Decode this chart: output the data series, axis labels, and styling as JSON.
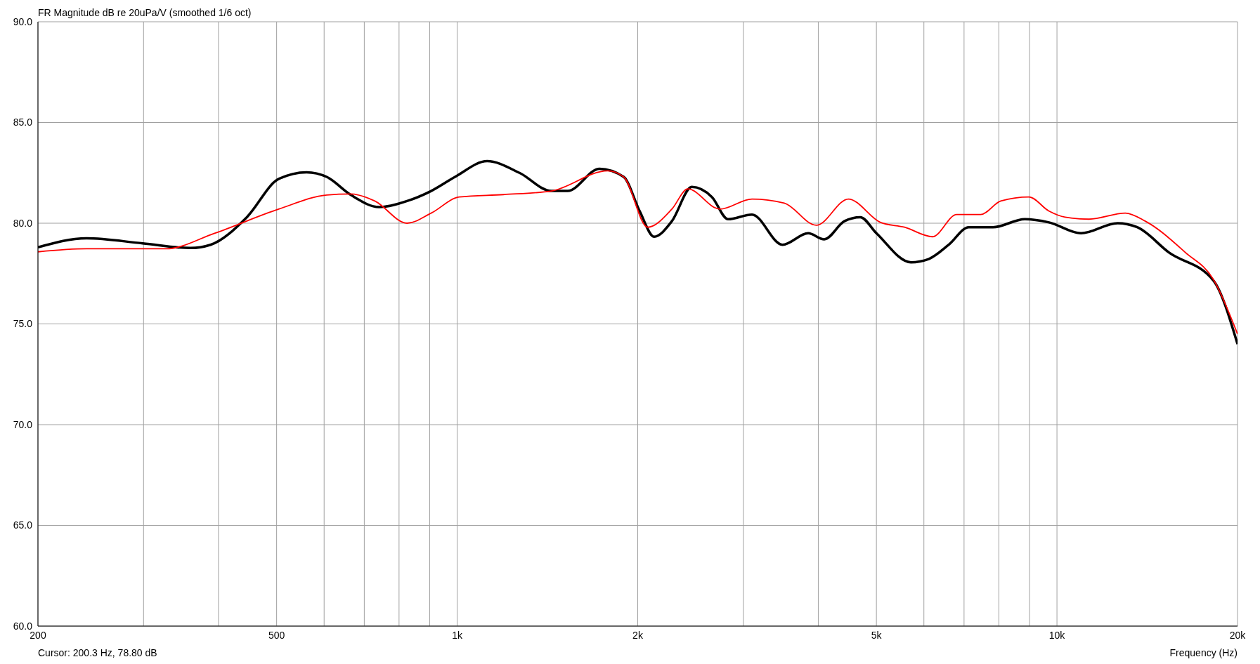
{
  "chart_data": {
    "type": "line",
    "title": "FR Magnitude dB re 20uPa/V (smoothed 1/6 oct)",
    "xlabel": "Frequency (Hz)",
    "annotations": [
      "Cursor: 200.3 Hz, 78.80 dB"
    ],
    "log": "x",
    "grid": true,
    "marker": "none",
    "line_style": "solid",
    "xlim": [
      200,
      20000
    ],
    "xticks": [
      200,
      {
        "value": 300,
        "label": null
      },
      {
        "value": 400,
        "label": null
      },
      500,
      {
        "value": 600,
        "label": null
      },
      {
        "value": 700,
        "label": null
      },
      {
        "value": 800,
        "label": null
      },
      {
        "value": 900,
        "label": null
      },
      {
        "value": 1000,
        "label": "1k"
      },
      {
        "value": 2000,
        "label": "2k"
      },
      {
        "value": 3000,
        "label": null
      },
      {
        "value": 4000,
        "label": null
      },
      {
        "value": 5000,
        "label": "5k"
      },
      {
        "value": 6000,
        "label": null
      },
      {
        "value": 7000,
        "label": null
      },
      {
        "value": 8000,
        "label": null
      },
      {
        "value": 9000,
        "label": null
      },
      {
        "value": 10000,
        "label": "10k"
      },
      {
        "value": 20000,
        "label": "20k"
      }
    ],
    "ylim": [
      60,
      90
    ],
    "yticks": [
      {
        "value": 60,
        "label": "60.0"
      },
      {
        "value": 65,
        "label": "65.0"
      },
      {
        "value": 70,
        "label": "70.0"
      },
      {
        "value": 75,
        "label": "75.0"
      },
      {
        "value": 80,
        "label": "80.0"
      },
      {
        "value": 85,
        "label": "85.0"
      },
      {
        "value": 90,
        "label": "90.0"
      }
    ],
    "series": [
      {
        "color": "#000000",
        "x": [
          200,
          241,
          299,
          359,
          388,
          446,
          504,
          561,
          606,
          665,
          741,
          825,
          905,
          992,
          1122,
          1270,
          1436,
          1528,
          1727,
          1895,
          2015,
          2130,
          2280,
          2462,
          2659,
          2829,
          3101,
          3487,
          3848,
          4093,
          4421,
          4700,
          5000,
          5710,
          6110,
          6600,
          7130,
          7820,
          8840,
          9700,
          10970,
          12620,
          13610,
          15380,
          18240,
          20000
        ],
        "values": [
          78.8,
          79.25,
          79.0,
          78.77,
          78.93,
          80.3,
          82.2,
          82.53,
          82.3,
          81.4,
          80.8,
          81.1,
          81.6,
          82.3,
          83.08,
          82.5,
          81.6,
          81.6,
          82.7,
          82.3,
          80.6,
          79.33,
          80.1,
          81.8,
          81.3,
          80.2,
          80.43,
          78.93,
          79.5,
          79.2,
          80.1,
          80.3,
          79.5,
          78.06,
          78.22,
          78.93,
          79.8,
          79.8,
          80.2,
          80.04,
          79.5,
          80.0,
          79.8,
          78.54,
          77.15,
          74.0
        ]
      },
      {
        "color": "#ff0000",
        "x": [
          200,
          241,
          327,
          394,
          504,
          606,
          665,
          729,
          825,
          905,
          1008,
          1194,
          1436,
          1782,
          1895,
          2078,
          2280,
          2424,
          2742,
          3101,
          3510,
          3970,
          4490,
          5080,
          5570,
          6200,
          6805,
          7460,
          8060,
          8980,
          9700,
          10320,
          11310,
          13000,
          14040,
          16380,
          18240,
          20000
        ],
        "values": [
          78.58,
          78.73,
          78.73,
          79.5,
          80.7,
          81.4,
          81.45,
          81.1,
          80.0,
          80.5,
          81.3,
          81.42,
          81.6,
          82.6,
          82.3,
          79.8,
          80.7,
          81.7,
          80.7,
          81.2,
          81.0,
          79.9,
          81.2,
          80.04,
          79.8,
          79.33,
          80.43,
          80.43,
          81.1,
          81.3,
          80.6,
          80.3,
          80.2,
          80.5,
          80.1,
          78.54,
          77.2,
          74.5
        ]
      }
    ]
  }
}
